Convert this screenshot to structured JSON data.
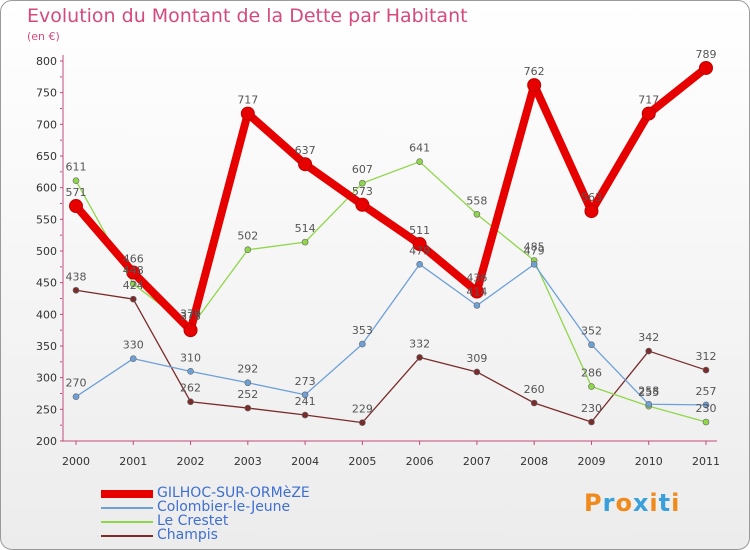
{
  "chart_data": {
    "type": "line",
    "title": "Evolution du Montant de la Dette par Habitant",
    "subtitle": "(en €)",
    "x": [
      "2000",
      "2001",
      "2002",
      "2003",
      "2004",
      "2005",
      "2006",
      "2007",
      "2008",
      "2009",
      "2010",
      "2011"
    ],
    "ylim": [
      200,
      800
    ],
    "yticks": [
      200,
      250,
      300,
      350,
      400,
      450,
      500,
      550,
      600,
      650,
      700,
      750,
      800
    ],
    "grid": false,
    "legend_position": "bottom-left",
    "series": [
      {
        "name": "GILHOC-SUR-ORMèZE",
        "color": "#e60000",
        "values": [
          571,
          466,
          375,
          717,
          637,
          573,
          511,
          436,
          762,
          563,
          717,
          789
        ]
      },
      {
        "name": "Colombier-le-Jeune",
        "color": "#6ea0d8",
        "values": [
          270,
          330,
          310,
          292,
          273,
          353,
          479,
          414,
          479,
          352,
          258,
          257
        ]
      },
      {
        "name": "Le Crestet",
        "color": "#8fd64a",
        "values": [
          611,
          448,
          379,
          502,
          514,
          607,
          641,
          558,
          485,
          286,
          255,
          230
        ]
      },
      {
        "name": "Champis",
        "color": "#7a2b2b",
        "values": [
          438,
          424,
          262,
          252,
          241,
          229,
          332,
          309,
          260,
          230,
          342,
          312
        ]
      }
    ]
  },
  "logo_text": "Proxiti"
}
